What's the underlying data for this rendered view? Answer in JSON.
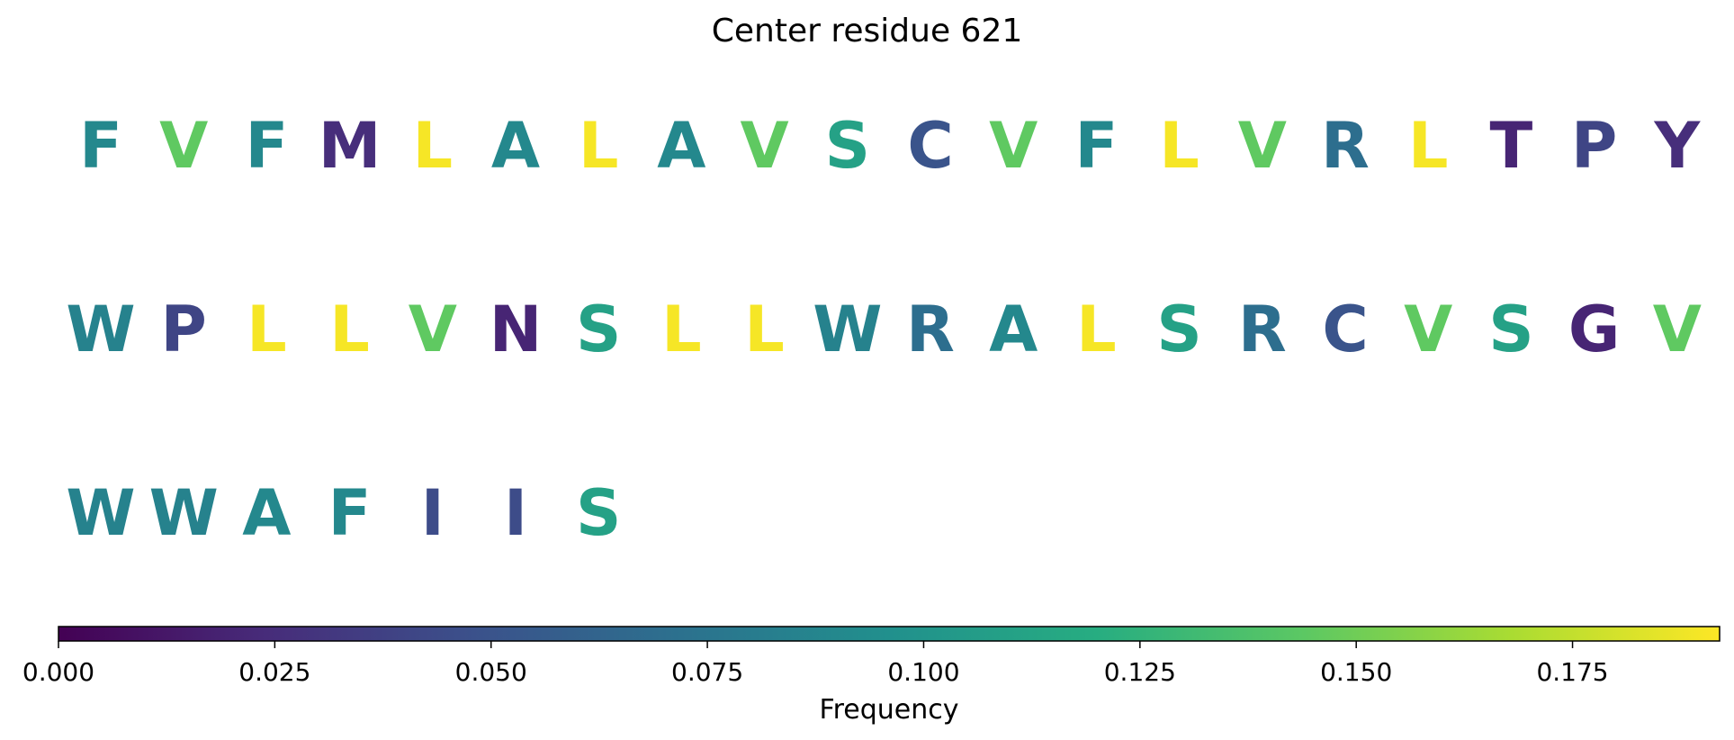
{
  "chart_data": {
    "type": "table",
    "title": "Center residue 621",
    "colorbar": {
      "label": "Frequency",
      "range": [
        0.0,
        0.192
      ],
      "colormap": "viridis",
      "ticks": [
        "0.000",
        "0.025",
        "0.050",
        "0.075",
        "0.100",
        "0.125",
        "0.150",
        "0.175"
      ],
      "tick_values": [
        0.0,
        0.025,
        0.05,
        0.075,
        0.1,
        0.125,
        0.15,
        0.175
      ]
    },
    "rows": [
      [
        {
          "residue": "F",
          "frequency": 0.09
        },
        {
          "residue": "V",
          "frequency": 0.145
        },
        {
          "residue": "F",
          "frequency": 0.09
        },
        {
          "residue": "M",
          "frequency": 0.025
        },
        {
          "residue": "L",
          "frequency": 0.19
        },
        {
          "residue": "A",
          "frequency": 0.09
        },
        {
          "residue": "L",
          "frequency": 0.19
        },
        {
          "residue": "A",
          "frequency": 0.09
        },
        {
          "residue": "V",
          "frequency": 0.145
        },
        {
          "residue": "S",
          "frequency": 0.11
        },
        {
          "residue": "C",
          "frequency": 0.05
        },
        {
          "residue": "V",
          "frequency": 0.145
        },
        {
          "residue": "F",
          "frequency": 0.09
        },
        {
          "residue": "L",
          "frequency": 0.19
        },
        {
          "residue": "V",
          "frequency": 0.145
        },
        {
          "residue": "R",
          "frequency": 0.07
        },
        {
          "residue": "L",
          "frequency": 0.19
        },
        {
          "residue": "T",
          "frequency": 0.02
        },
        {
          "residue": "P",
          "frequency": 0.04
        },
        {
          "residue": "Y",
          "frequency": 0.025
        }
      ],
      [
        {
          "residue": "W",
          "frequency": 0.085
        },
        {
          "residue": "P",
          "frequency": 0.04
        },
        {
          "residue": "L",
          "frequency": 0.19
        },
        {
          "residue": "L",
          "frequency": 0.19
        },
        {
          "residue": "V",
          "frequency": 0.145
        },
        {
          "residue": "N",
          "frequency": 0.02
        },
        {
          "residue": "S",
          "frequency": 0.11
        },
        {
          "residue": "L",
          "frequency": 0.19
        },
        {
          "residue": "L",
          "frequency": 0.19
        },
        {
          "residue": "W",
          "frequency": 0.085
        },
        {
          "residue": "R",
          "frequency": 0.07
        },
        {
          "residue": "A",
          "frequency": 0.09
        },
        {
          "residue": "L",
          "frequency": 0.19
        },
        {
          "residue": "S",
          "frequency": 0.11
        },
        {
          "residue": "R",
          "frequency": 0.07
        },
        {
          "residue": "C",
          "frequency": 0.05
        },
        {
          "residue": "V",
          "frequency": 0.145
        },
        {
          "residue": "S",
          "frequency": 0.11
        },
        {
          "residue": "G",
          "frequency": 0.02
        },
        {
          "residue": "V",
          "frequency": 0.145
        }
      ],
      [
        {
          "residue": "W",
          "frequency": 0.085
        },
        {
          "residue": "W",
          "frequency": 0.085
        },
        {
          "residue": "A",
          "frequency": 0.09
        },
        {
          "residue": "F",
          "frequency": 0.09
        },
        {
          "residue": "I",
          "frequency": 0.045
        },
        {
          "residue": "I",
          "frequency": 0.045
        },
        {
          "residue": "S",
          "frequency": 0.11
        }
      ]
    ]
  }
}
